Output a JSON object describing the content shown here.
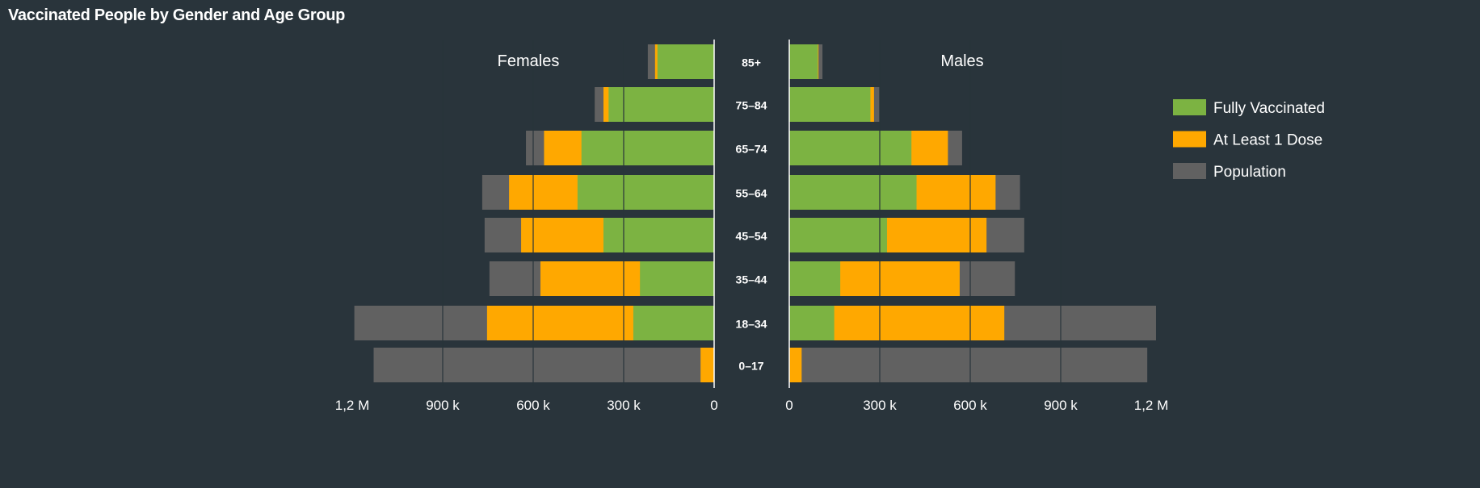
{
  "chart_data": {
    "type": "bar",
    "title": "Vaccinated People by Gender and Age Group",
    "orientation": "horizontal-population-pyramid",
    "categories": [
      "85+",
      "75–84",
      "65–74",
      "55–64",
      "45–54",
      "35–44",
      "18–34",
      "0–17"
    ],
    "sides": [
      {
        "name": "Females",
        "direction": "left",
        "series": [
          {
            "name": "Population",
            "values": [
              220000,
              396000,
              624000,
              769000,
              761000,
              745000,
              1193000,
              1129000
            ]
          },
          {
            "name": "At Least 1 Dose",
            "values": [
              196000,
              367000,
              564000,
              680000,
              640000,
              576000,
              753000,
              45000
            ]
          },
          {
            "name": "Fully Vaccinated",
            "values": [
              188000,
              350000,
              440000,
              453000,
              367000,
              246000,
              268000,
              0
            ]
          }
        ]
      },
      {
        "name": "Males",
        "direction": "right",
        "series": [
          {
            "name": "Population",
            "values": [
              110000,
              299000,
              573000,
              765000,
              779000,
              748000,
              1216000,
              1187000
            ]
          },
          {
            "name": "At Least 1 Dose",
            "values": [
              97000,
              281000,
              526000,
              684000,
              654000,
              565000,
              713000,
              41000
            ]
          },
          {
            "name": "Fully Vaccinated",
            "values": [
              95000,
              269000,
              405000,
              422000,
              324000,
              169000,
              149000,
              0
            ]
          }
        ]
      }
    ],
    "xlim": [
      0,
      1200000
    ],
    "xticks": [
      0,
      300000,
      600000,
      900000,
      1200000
    ],
    "xtick_labels": [
      "0",
      "300 k",
      "600 k",
      "900 k",
      "1,2 M"
    ],
    "grid": true,
    "legend": {
      "placement": "right",
      "entries": [
        {
          "name": "Fully Vaccinated",
          "color": "#7cb342"
        },
        {
          "name": "At Least 1 Dose",
          "color": "#ffa800"
        },
        {
          "name": "Population",
          "color": "#616161"
        }
      ]
    }
  }
}
